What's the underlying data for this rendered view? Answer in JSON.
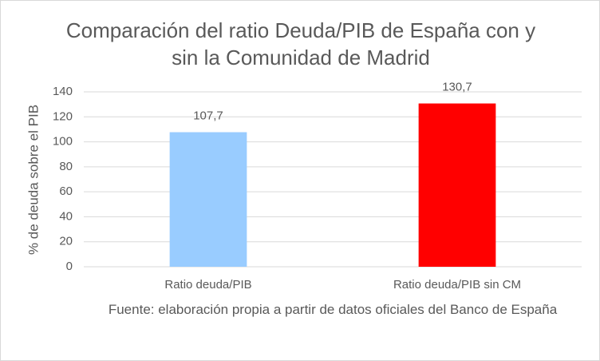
{
  "chart_data": {
    "type": "bar",
    "title": "Comparación del ratio Deuda/PIB de España con y sin la Comunidad de Madrid",
    "x_label": "Fuente: elaboración propia a partir de datos oficiales del Banco de España",
    "y_label": "% de deuda sobre el PIB",
    "categories": [
      "Ratio deuda/PIB",
      "Ratio deuda/PIB sin CM"
    ],
    "values": [
      107.7,
      130.7
    ],
    "value_labels": [
      "107,7",
      "130,7"
    ],
    "colors": [
      "#99ccff",
      "#ff0000"
    ],
    "ylim": [
      0,
      140
    ],
    "yticks": [
      0,
      20,
      40,
      60,
      80,
      100,
      120,
      140
    ],
    "grid": true
  }
}
